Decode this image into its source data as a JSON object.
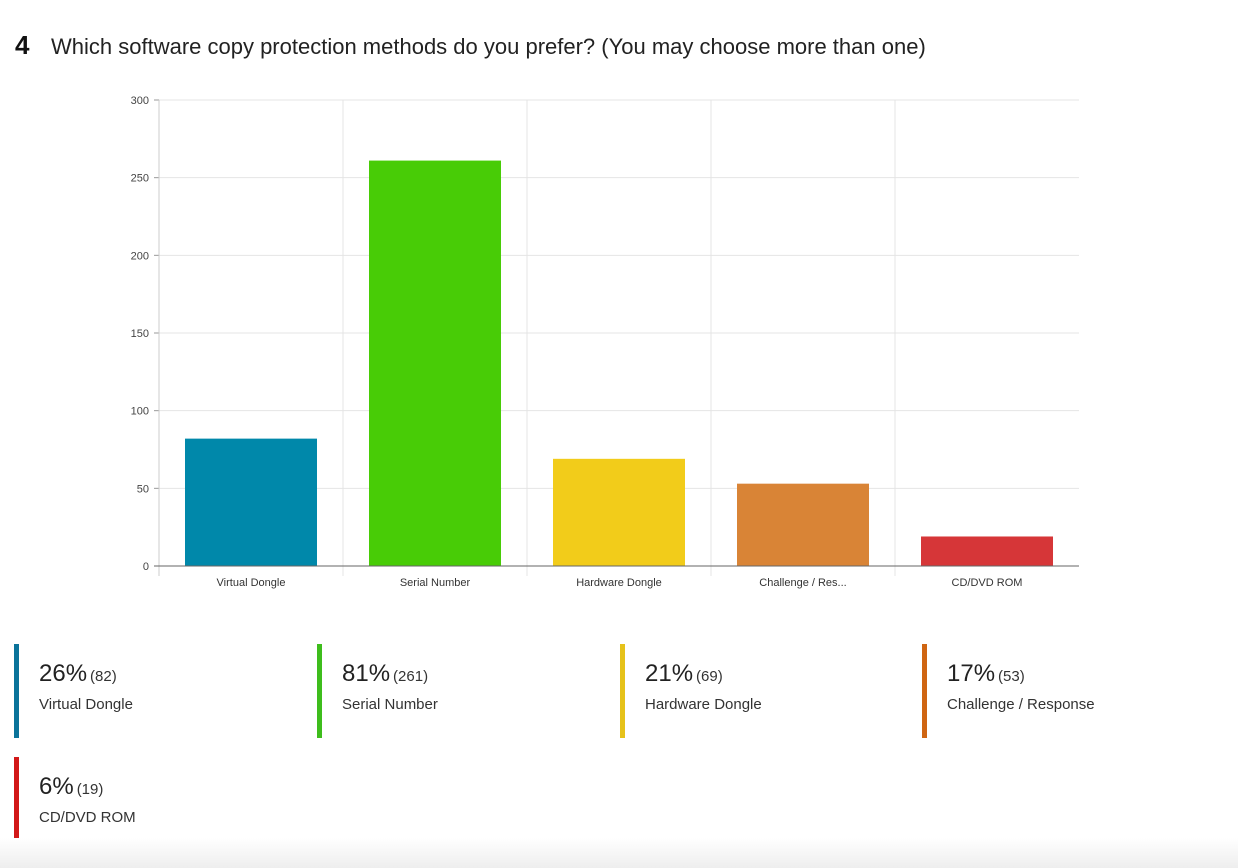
{
  "question": {
    "number": "4",
    "text": "Which software copy protection methods do you prefer? (You may choose more than one)"
  },
  "chart_data": {
    "type": "bar",
    "categories": [
      "Virtual Dongle",
      "Serial Number",
      "Hardware Dongle",
      "Challenge / Res...",
      "CD/DVD ROM"
    ],
    "values": [
      82,
      261,
      69,
      53,
      19
    ],
    "colors": [
      "#0088aa",
      "#48cc06",
      "#f2cc1a",
      "#d98436",
      "#d63638"
    ],
    "ylim": [
      0,
      300
    ],
    "yticks": [
      0,
      50,
      100,
      150,
      200,
      250,
      300
    ],
    "grid": true,
    "title": "",
    "xlabel": "",
    "ylabel": ""
  },
  "legend": [
    {
      "percent": "26%",
      "count": "(82)",
      "label": "Virtual Dongle",
      "color": "#0a739a"
    },
    {
      "percent": "81%",
      "count": "(261)",
      "label": "Serial Number",
      "color": "#3ebd1c"
    },
    {
      "percent": "21%",
      "count": "(69)",
      "label": "Hardware Dongle",
      "color": "#e6c21a"
    },
    {
      "percent": "17%",
      "count": "(53)",
      "label": "Challenge / Response",
      "color": "#cf6512"
    },
    {
      "percent": "6%",
      "count": "(19)",
      "label": "CD/DVD ROM",
      "color": "#d21818"
    }
  ]
}
